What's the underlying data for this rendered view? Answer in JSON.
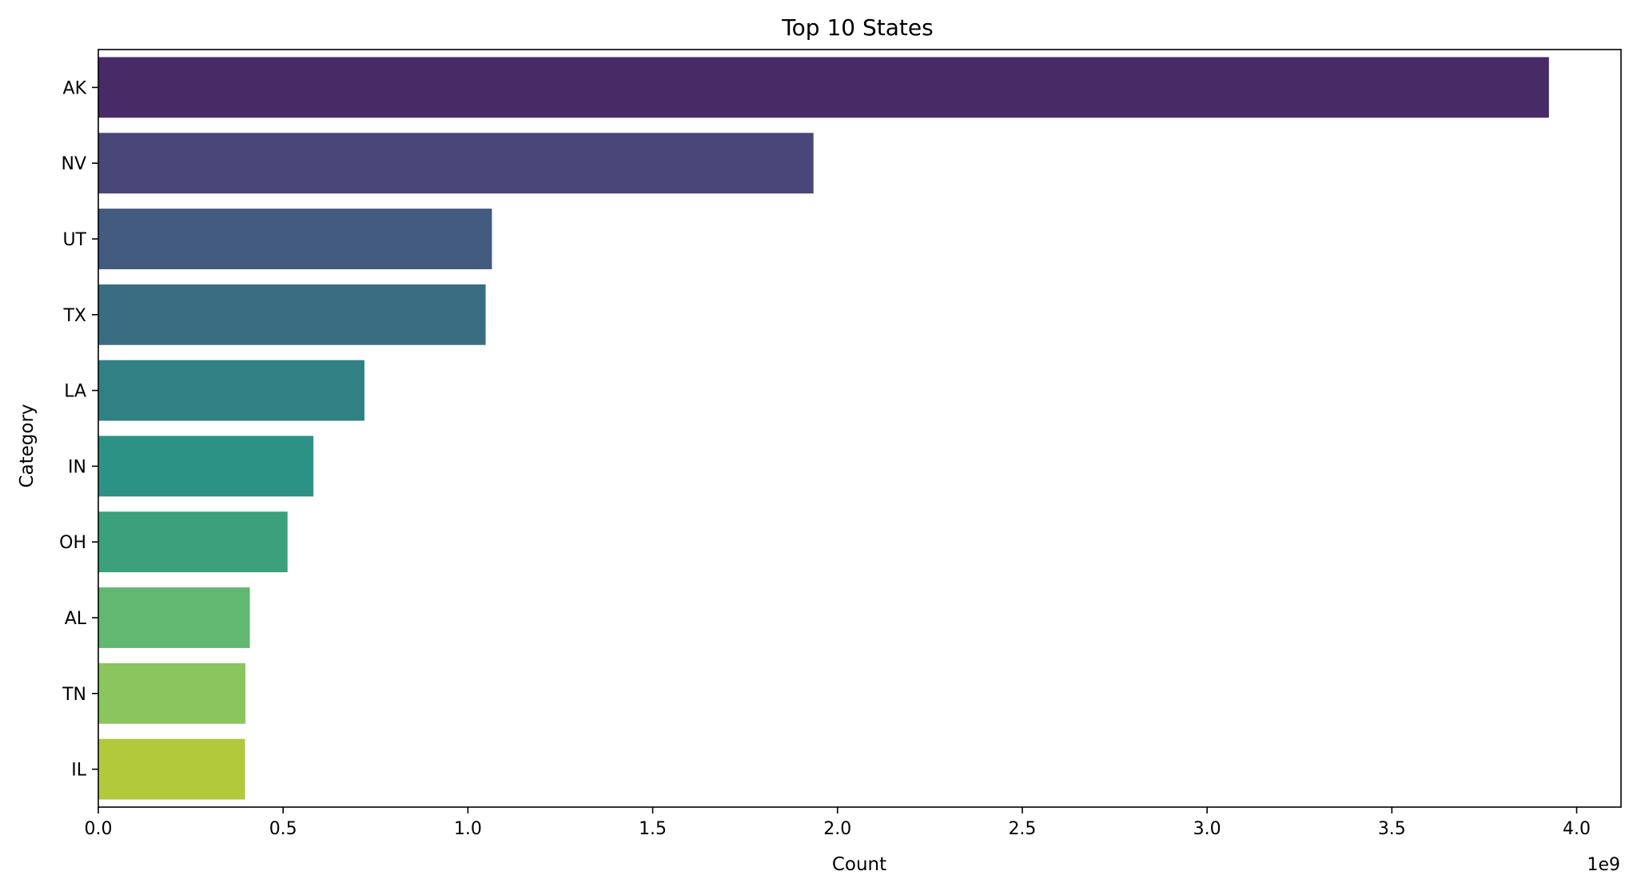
{
  "chart_data": {
    "type": "bar",
    "orientation": "horizontal",
    "title": "Top 10 States",
    "xlabel": "Count",
    "ylabel": "Category",
    "x_offset_label": "1e9",
    "x_scale_exponent": 9,
    "xlim": [
      0,
      4.12
    ],
    "xticks": [
      "0.0",
      "0.5",
      "1.0",
      "1.5",
      "2.0",
      "2.5",
      "3.0",
      "3.5",
      "4.0"
    ],
    "categories": [
      "AK",
      "NV",
      "UT",
      "TX",
      "LA",
      "IN",
      "OH",
      "AL",
      "TN",
      "IL"
    ],
    "values": [
      3.925,
      1.935,
      1.065,
      1.048,
      0.72,
      0.582,
      0.512,
      0.41,
      0.398,
      0.397
    ],
    "colors": [
      "#482b66",
      "#49477a",
      "#435b7e",
      "#3a6d82",
      "#318083",
      "#2d9286",
      "#3ba07b",
      "#62b771",
      "#8bc55e",
      "#b2c93c"
    ],
    "grid": false,
    "legend": "none"
  }
}
